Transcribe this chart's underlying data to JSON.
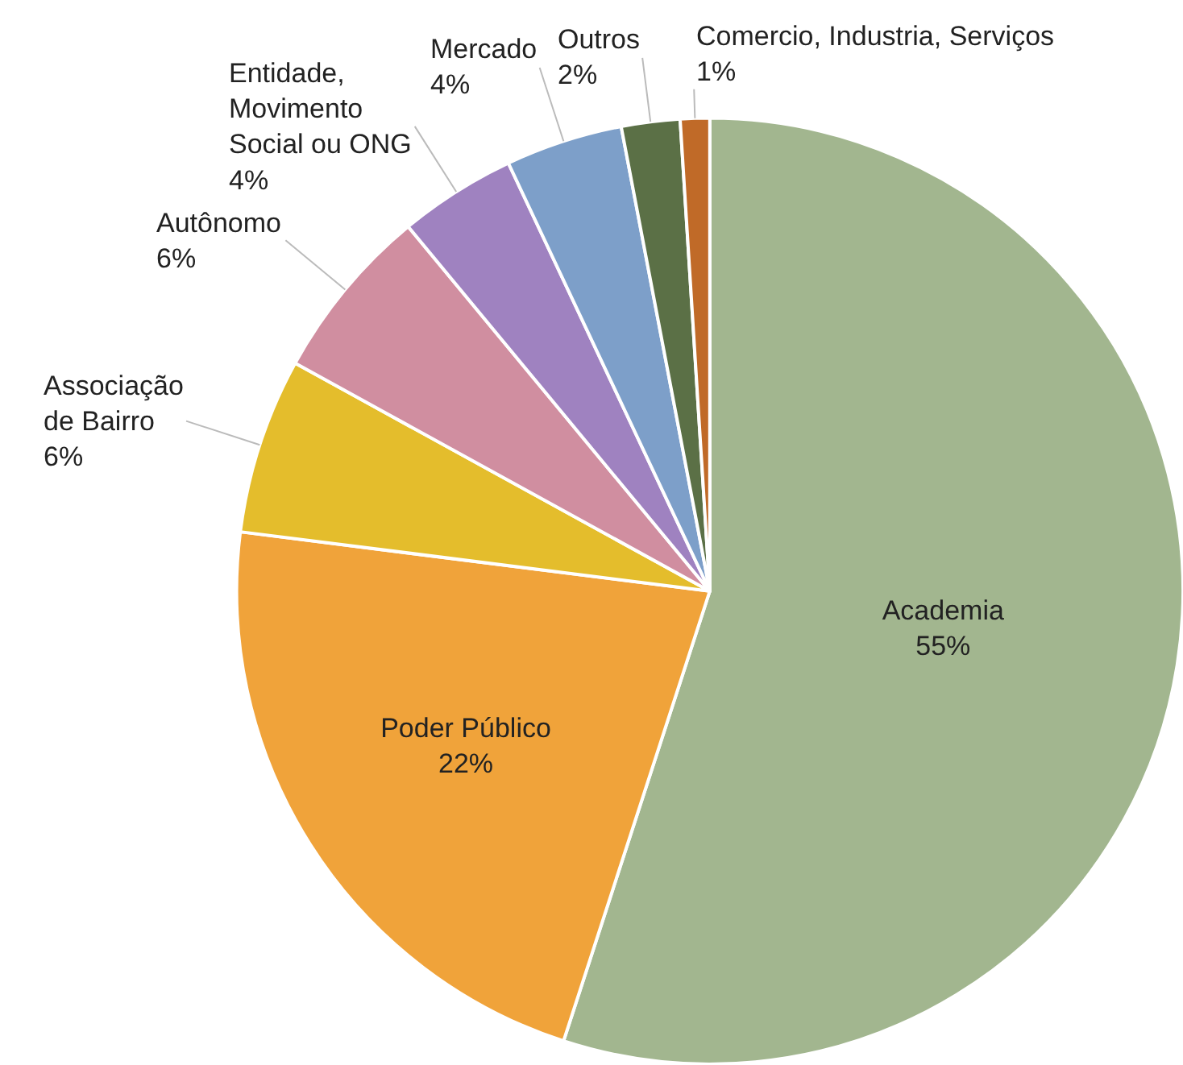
{
  "chart_data": {
    "type": "pie",
    "categories": [
      "Academia",
      "Poder Público",
      "Associação\nde Bairro",
      "Autônomo",
      "Entidade,\nMovimento\nSocial ou ONG",
      "Mercado",
      "Outros",
      "Comercio, Industria, Serviços"
    ],
    "values": [
      55,
      22,
      6,
      6,
      4,
      4,
      2,
      1
    ],
    "value_labels": [
      "55%",
      "22%",
      "6%",
      "6%",
      "4%",
      "4%",
      "2%",
      "1%"
    ],
    "colors": [
      "#a2b68f",
      "#f0a33a",
      "#e4bd2c",
      "#d08ea0",
      "#9f82c0",
      "#7d9fc9",
      "#5b7046",
      "#c06a28"
    ],
    "legend": false
  }
}
